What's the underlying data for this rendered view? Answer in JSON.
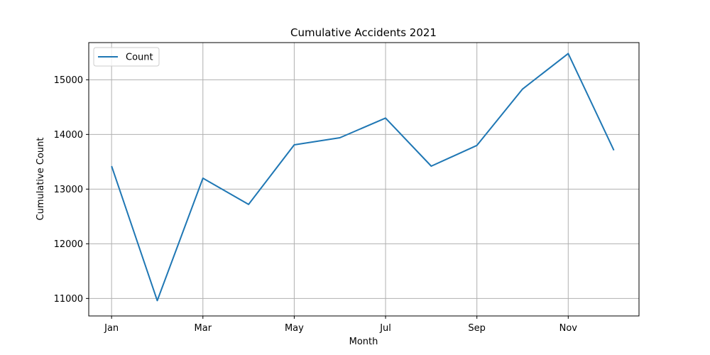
{
  "chart_data": {
    "type": "line",
    "title": "Cumulative Accidents 2021",
    "xlabel": "Month",
    "ylabel": "Cumulative Count",
    "grid": true,
    "legend_position": "top-left",
    "colors": {
      "series": "#1f77b4",
      "grid": "#b0b0b0",
      "axis": "#000000"
    },
    "x_ticks": [
      {
        "index": 0,
        "label": "Jan"
      },
      {
        "index": 2,
        "label": "Mar"
      },
      {
        "index": 4,
        "label": "May"
      },
      {
        "index": 6,
        "label": "Jul"
      },
      {
        "index": 8,
        "label": "Sep"
      },
      {
        "index": 10,
        "label": "Nov"
      }
    ],
    "y_ticks": [
      11000,
      12000,
      13000,
      14000,
      15000
    ],
    "y_tick_labels": [
      "11000",
      "12000",
      "13000",
      "14000",
      "15000"
    ],
    "xlim": [
      -0.5,
      11.55
    ],
    "ylim": [
      10680,
      15680
    ],
    "series": [
      {
        "name": "Count",
        "values": [
          13420,
          10960,
          13200,
          12720,
          13810,
          13940,
          14300,
          13420,
          13800,
          14830,
          15480,
          13710
        ]
      }
    ]
  }
}
